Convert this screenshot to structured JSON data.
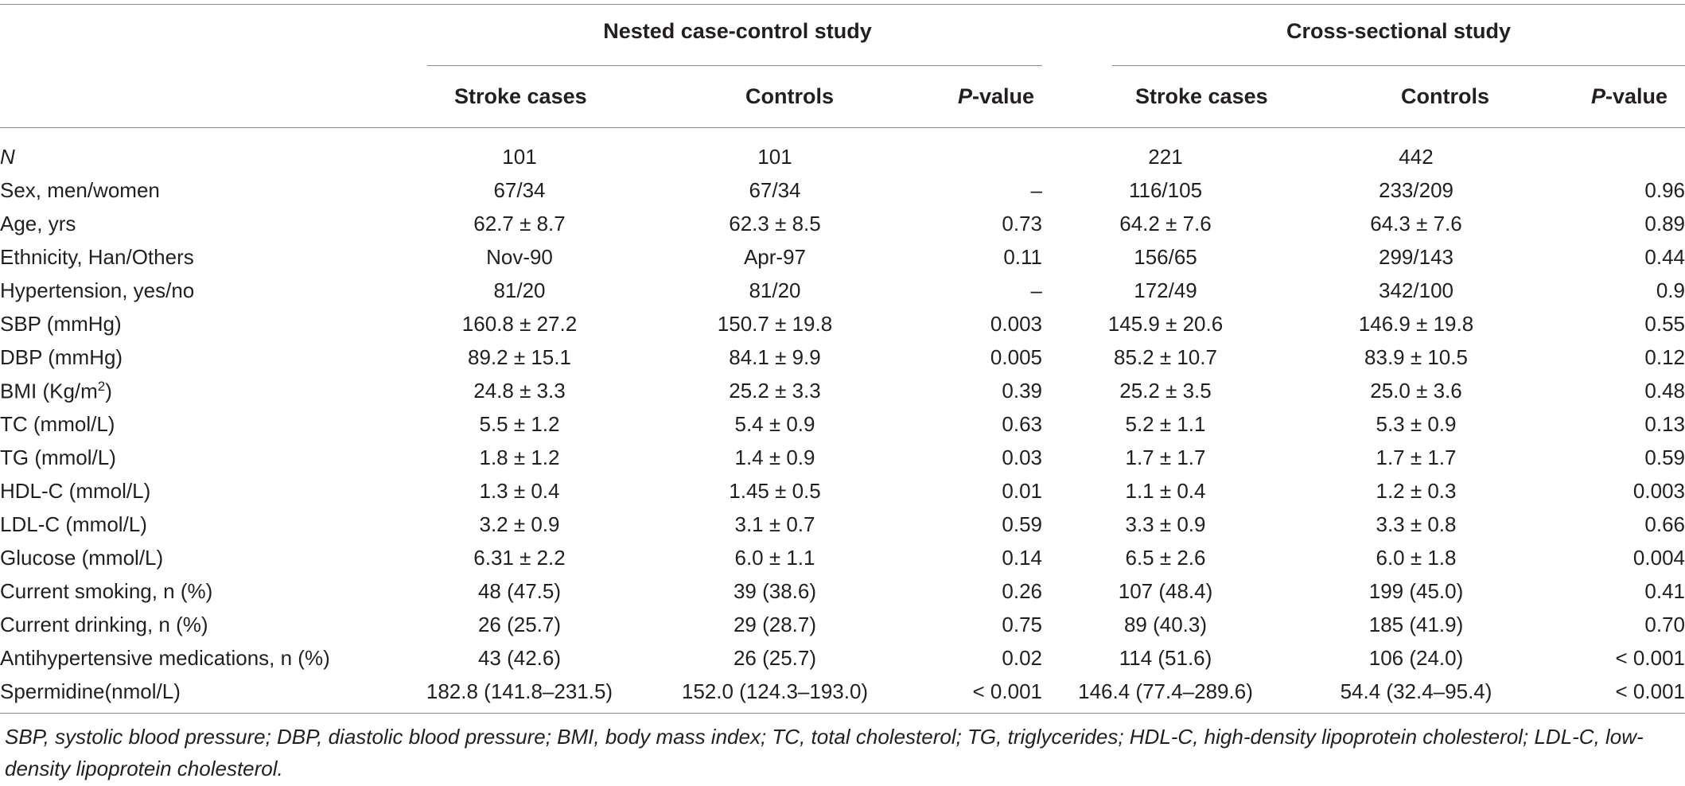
{
  "table": {
    "groups": [
      {
        "name": "Nested case-control study"
      },
      {
        "name": "Cross-sectional study"
      }
    ],
    "columns": {
      "stroke_cases": "Stroke cases",
      "controls": "Controls",
      "p_value_prefix": "P",
      "p_value_suffix": "-value"
    },
    "rows": [
      {
        "label": "N",
        "label_italic": true,
        "values": [
          "101",
          "101",
          "",
          "221",
          "442",
          ""
        ]
      },
      {
        "label": "Sex, men/women",
        "values": [
          "67/34",
          "67/34",
          "–",
          "116/105",
          "233/209",
          "0.96"
        ]
      },
      {
        "label": "Age, yrs",
        "values": [
          "62.7 ± 8.7",
          "62.3 ± 8.5",
          "0.73",
          "64.2 ± 7.6",
          "64.3 ± 7.6",
          "0.89"
        ]
      },
      {
        "label": "Ethnicity, Han/Others",
        "values": [
          "Nov-90",
          "Apr-97",
          "0.11",
          "156/65",
          "299/143",
          "0.44"
        ]
      },
      {
        "label": "Hypertension, yes/no",
        "values": [
          "81/20",
          "81/20",
          "–",
          "172/49",
          "342/100",
          "0.9"
        ]
      },
      {
        "label": "SBP (mmHg)",
        "values": [
          "160.8 ± 27.2",
          "150.7 ± 19.8",
          "0.003",
          "145.9 ± 20.6",
          "146.9 ± 19.8",
          "0.55"
        ]
      },
      {
        "label": "DBP (mmHg)",
        "values": [
          "89.2 ± 15.1",
          "84.1 ± 9.9",
          "0.005",
          "85.2 ± 10.7",
          "83.9 ± 10.5",
          "0.12"
        ]
      },
      {
        "label": "BMI (Kg/m",
        "label_sup": "2",
        "label_after": ")",
        "values": [
          "24.8 ± 3.3",
          "25.2 ± 3.3",
          "0.39",
          "25.2 ± 3.5",
          "25.0 ± 3.6",
          "0.48"
        ]
      },
      {
        "label": "TC (mmol/L)",
        "values": [
          "5.5 ± 1.2",
          "5.4 ± 0.9",
          "0.63",
          "5.2 ± 1.1",
          "5.3 ± 0.9",
          "0.13"
        ]
      },
      {
        "label": "TG (mmol/L)",
        "values": [
          "1.8 ± 1.2",
          "1.4 ± 0.9",
          "0.03",
          "1.7 ± 1.7",
          "1.7 ± 1.7",
          "0.59"
        ]
      },
      {
        "label": "HDL-C (mmol/L)",
        "values": [
          "1.3 ± 0.4",
          "1.45 ± 0.5",
          "0.01",
          "1.1 ± 0.4",
          "1.2 ± 0.3",
          "0.003"
        ]
      },
      {
        "label": "LDL-C (mmol/L)",
        "values": [
          "3.2 ± 0.9",
          "3.1 ± 0.7",
          "0.59",
          "3.3 ± 0.9",
          "3.3 ± 0.8",
          "0.66"
        ]
      },
      {
        "label": "Glucose (mmol/L)",
        "values": [
          "6.31 ± 2.2",
          "6.0 ± 1.1",
          "0.14",
          "6.5 ± 2.6",
          "6.0 ± 1.8",
          "0.004"
        ]
      },
      {
        "label": "Current smoking, n (%)",
        "values": [
          "48 (47.5)",
          "39 (38.6)",
          "0.26",
          "107 (48.4)",
          "199 (45.0)",
          "0.41"
        ]
      },
      {
        "label": "Current drinking, n (%)",
        "values": [
          "26 (25.7)",
          "29 (28.7)",
          "0.75",
          "89 (40.3)",
          "185 (41.9)",
          "0.70"
        ]
      },
      {
        "label": "Antihypertensive medications, n (%)",
        "values": [
          "43 (42.6)",
          "26 (25.7)",
          "0.02",
          "114 (51.6)",
          "106 (24.0)",
          "< 0.001"
        ]
      },
      {
        "label": "Spermidine(nmol/L)",
        "values": [
          "182.8 (141.8–231.5)",
          "152.0 (124.3–193.0)",
          "< 0.001",
          "146.4 (77.4–289.6)",
          "54.4 (32.4–95.4)",
          "< 0.001"
        ]
      }
    ],
    "footnote": "SBP, systolic blood pressure; DBP, diastolic blood pressure; BMI, body mass index; TC, total cholesterol; TG, triglycerides; HDL-C, high-density lipoprotein cholesterol; LDL-C, low-density lipoprotein cholesterol."
  }
}
